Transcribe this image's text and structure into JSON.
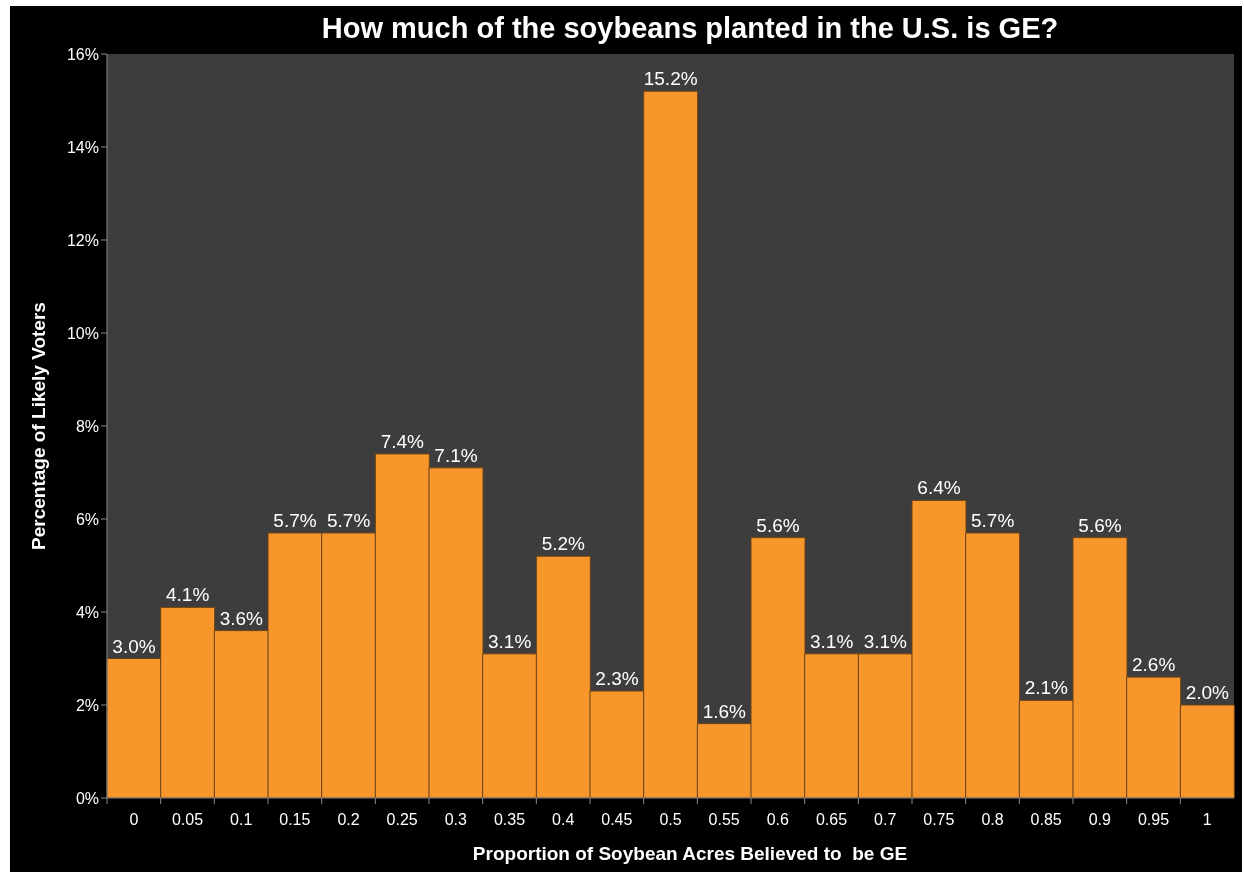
{
  "chart_data": {
    "type": "bar",
    "title": "How much of the soybeans planted in the U.S. is GE?",
    "xlabel": "Proportion of Soybean Acres Believed to  be GE",
    "ylabel": "Percentage of Likely Voters",
    "categories": [
      "0",
      "0.05",
      "0.1",
      "0.15",
      "0.2",
      "0.25",
      "0.3",
      "0.35",
      "0.4",
      "0.45",
      "0.5",
      "0.55",
      "0.6",
      "0.65",
      "0.7",
      "0.75",
      "0.8",
      "0.85",
      "0.9",
      "0.95",
      "1"
    ],
    "values": [
      3.0,
      4.1,
      3.6,
      5.7,
      5.7,
      7.4,
      7.1,
      3.1,
      5.2,
      2.3,
      15.2,
      1.6,
      5.6,
      3.1,
      3.1,
      6.4,
      5.7,
      2.1,
      5.6,
      2.6,
      2.0
    ],
    "value_labels": [
      "3.0%",
      "4.1%",
      "3.6%",
      "5.7%",
      "5.7%",
      "7.4%",
      "7.1%",
      "3.1%",
      "5.2%",
      "2.3%",
      "15.2%",
      "1.6%",
      "5.6%",
      "3.1%",
      "3.1%",
      "6.4%",
      "5.7%",
      "2.1%",
      "5.6%",
      "2.6%",
      "2.0%"
    ],
    "color": "#f7962b",
    "ylim": [
      0,
      16
    ],
    "yticks": [
      {
        "value": 0,
        "label": "0%"
      },
      {
        "value": 2,
        "label": "2%"
      },
      {
        "value": 4,
        "label": "4%"
      },
      {
        "value": 6,
        "label": "6%"
      },
      {
        "value": 8,
        "label": "8%"
      },
      {
        "value": 10,
        "label": "10%"
      },
      {
        "value": 12,
        "label": "12%"
      },
      {
        "value": 14,
        "label": "14%"
      },
      {
        "value": 16,
        "label": "16%"
      }
    ]
  }
}
